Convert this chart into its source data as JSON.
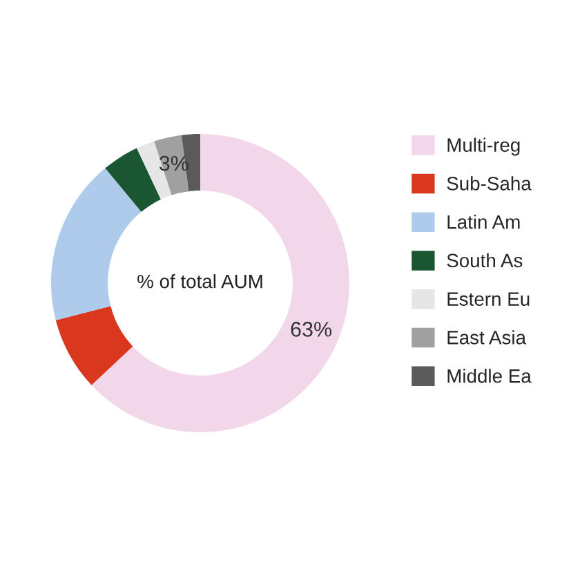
{
  "chart_data": {
    "type": "donut",
    "categories": [
      "Multi-reg",
      "Sub-Saha",
      "Latin Am",
      "South As",
      "Estern Eu",
      "East Asia",
      "Middle Ea"
    ],
    "values": [
      63,
      8,
      18,
      4,
      2,
      3,
      2
    ],
    "colors": [
      "#f2d6e9",
      "#d9381e",
      "#aecbeb",
      "#1a5632",
      "#e6e6e6",
      "#a0a0a0",
      "#5a5a5a"
    ],
    "value_labels": [
      "63%",
      null,
      null,
      null,
      null,
      "3%",
      null
    ],
    "annotations": [
      "% of total AUM"
    ],
    "legend": "right"
  }
}
